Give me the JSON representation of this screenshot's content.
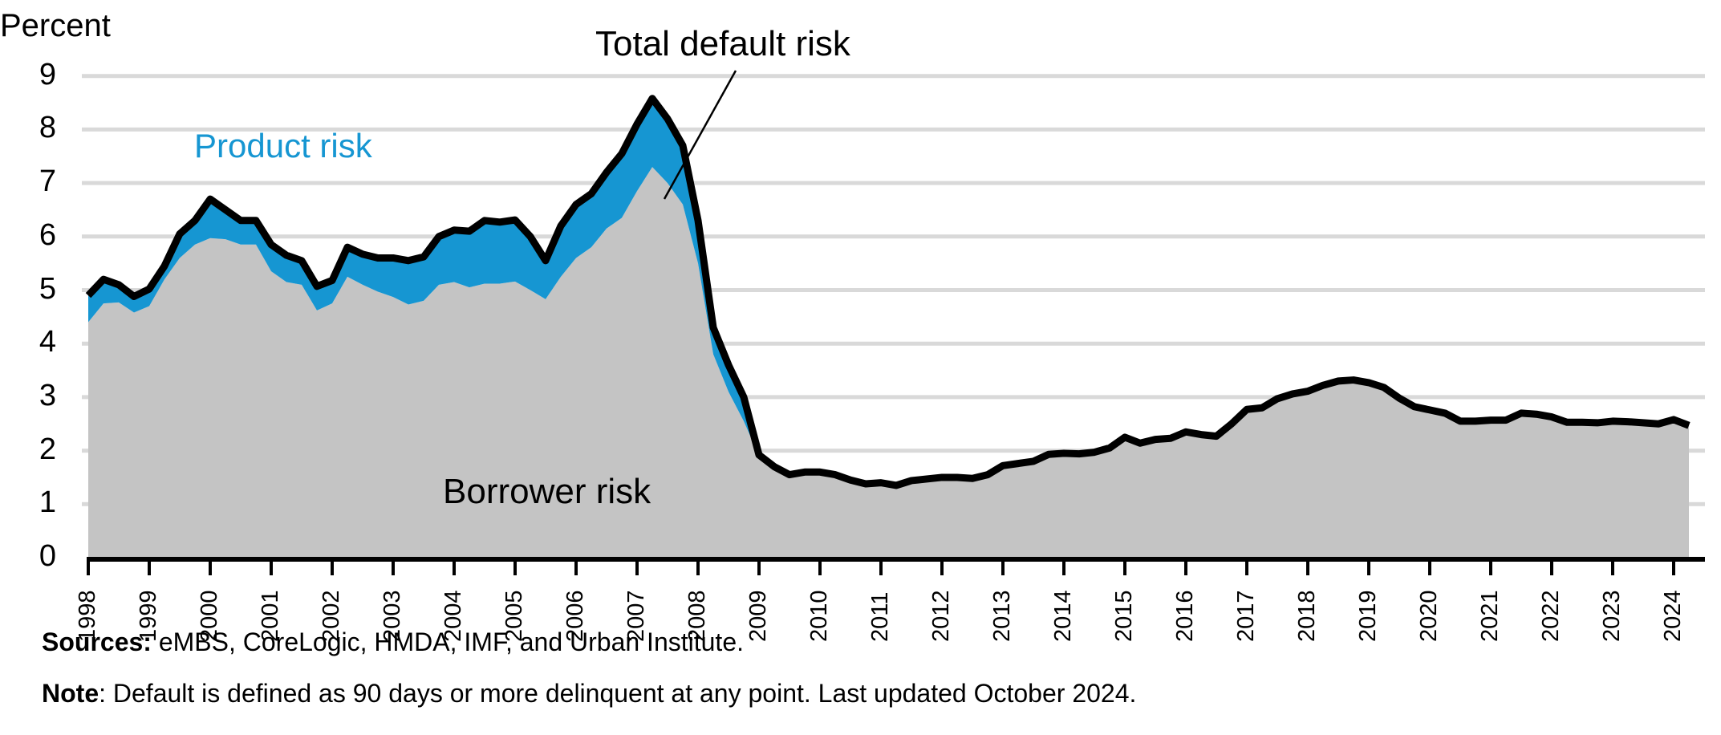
{
  "chart_data": {
    "type": "area",
    "title": "",
    "ylabel": "Percent",
    "xlabel": "",
    "ylim": [
      0,
      9
    ],
    "yticks": [
      0,
      1,
      2,
      3,
      4,
      5,
      6,
      7,
      8,
      9
    ],
    "grid": true,
    "xticks": [
      "1998",
      "1999",
      "2000",
      "2001",
      "2002",
      "2003",
      "2004",
      "2005",
      "2006",
      "2007",
      "2008",
      "2009",
      "2010",
      "2011",
      "2012",
      "2013",
      "2014",
      "2015",
      "2016",
      "2017",
      "2018",
      "2019",
      "2020",
      "2021",
      "2022",
      "2023",
      "2024"
    ],
    "x_quarters": "quarterly from 1998 Q1 to 2024 Q2",
    "series": [
      {
        "name": "Borrower risk",
        "color": "#c4c4c4",
        "type": "stacked-area",
        "values": [
          4.4,
          4.75,
          4.77,
          4.58,
          4.7,
          5.2,
          5.6,
          5.85,
          5.97,
          5.95,
          5.85,
          5.85,
          5.35,
          5.15,
          5.1,
          4.62,
          4.75,
          5.25,
          5.1,
          4.97,
          4.87,
          4.73,
          4.8,
          5.1,
          5.15,
          5.05,
          5.12,
          5.12,
          5.16,
          5.0,
          4.83,
          5.25,
          5.6,
          5.8,
          6.15,
          6.35,
          6.85,
          7.3,
          7.0,
          6.6,
          5.5,
          3.8,
          3.1,
          2.55,
          1.9,
          1.7,
          1.55,
          1.6,
          1.6,
          1.55,
          1.45,
          1.38,
          1.4,
          1.35,
          1.44,
          1.47,
          1.5,
          1.5,
          1.48,
          1.55,
          1.72,
          1.76,
          1.8,
          1.93,
          1.95,
          1.94,
          1.97,
          2.05,
          2.25,
          2.14,
          2.21,
          2.23,
          2.35,
          2.3,
          2.27,
          2.5,
          2.77,
          2.8,
          2.97,
          3.06,
          3.11,
          3.22,
          3.3,
          3.32,
          3.27,
          3.18,
          2.98,
          2.82,
          2.76,
          2.7,
          2.55,
          2.55,
          2.57,
          2.57,
          2.7,
          2.68,
          2.63,
          2.53,
          2.53,
          2.52,
          2.55,
          2.54,
          2.52,
          2.5,
          2.58,
          2.47
        ]
      },
      {
        "name": "Product risk",
        "color": "#1696d2",
        "type": "stacked-area",
        "values": [
          0.5,
          0.45,
          0.33,
          0.3,
          0.32,
          0.25,
          0.45,
          0.45,
          0.73,
          0.55,
          0.45,
          0.45,
          0.5,
          0.5,
          0.45,
          0.45,
          0.43,
          0.55,
          0.57,
          0.63,
          0.73,
          0.82,
          0.82,
          0.9,
          0.97,
          1.05,
          1.18,
          1.15,
          1.15,
          1.0,
          0.72,
          0.95,
          1.0,
          1.0,
          1.05,
          1.2,
          1.25,
          1.28,
          1.2,
          1.1,
          0.8,
          0.5,
          0.5,
          0.45,
          0.02,
          0,
          0,
          0,
          0,
          0,
          0,
          0,
          0,
          0,
          0,
          0,
          0,
          0,
          0,
          0,
          0,
          0,
          0,
          0,
          0,
          0,
          0,
          0,
          0,
          0,
          0,
          0,
          0,
          0,
          0,
          0,
          0,
          0,
          0,
          0,
          0,
          0,
          0,
          0,
          0,
          0,
          0,
          0,
          0,
          0,
          0,
          0,
          0,
          0,
          0,
          0,
          0,
          0,
          0,
          0,
          0,
          0,
          0,
          0,
          0,
          0
        ]
      },
      {
        "name": "Total default risk",
        "color": "#000000",
        "type": "line"
      }
    ],
    "annotations": [
      "Total default risk",
      "Product risk",
      "Borrower risk"
    ]
  },
  "labels": {
    "ylabel": "Percent",
    "total": "Total default risk",
    "product": "Product risk",
    "borrower": "Borrower risk",
    "sources_bold": "Sources:",
    "sources_text": " eMBS, CoreLogic, HMDA, IMF, and Urban Institute.",
    "note_bold": "Note",
    "note_text": ": Default is defined as 90 days or more delinquent at any point. Last updated October 2024."
  }
}
